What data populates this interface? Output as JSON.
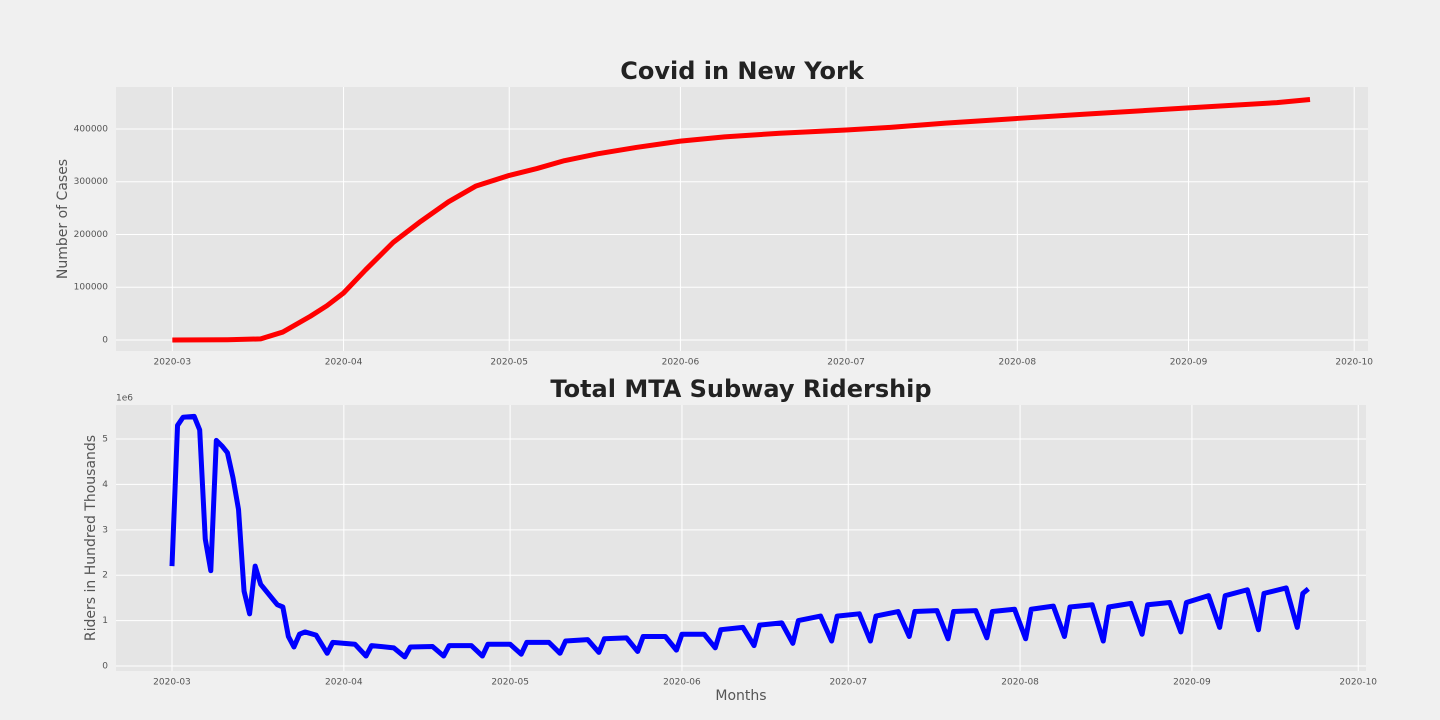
{
  "chart_data": [
    {
      "type": "line",
      "title": "Covid in New York",
      "ylabel": "Number of Cases",
      "xlim": [
        -10.2,
        216.5
      ],
      "ylim": [
        -20900,
        479600
      ],
      "xticks": [
        {
          "value": 0,
          "label": "2020-03"
        },
        {
          "value": 31,
          "label": "2020-04"
        },
        {
          "value": 61,
          "label": "2020-05"
        },
        {
          "value": 92,
          "label": "2020-06"
        },
        {
          "value": 122,
          "label": "2020-07"
        },
        {
          "value": 153,
          "label": "2020-08"
        },
        {
          "value": 184,
          "label": "2020-09"
        },
        {
          "value": 214,
          "label": "2020-10"
        }
      ],
      "yticks": [
        0,
        100000,
        200000,
        300000,
        400000
      ],
      "grid": true,
      "series": [
        {
          "color": "#ff0000",
          "x": [
            0,
            10,
            16,
            20,
            25,
            28,
            31,
            35,
            40,
            45,
            50,
            55,
            61,
            66,
            71,
            77,
            84,
            92,
            100,
            110,
            122,
            130,
            140,
            153,
            165,
            184,
            200,
            206
          ],
          "values": [
            0,
            500,
            2000,
            15000,
            45000,
            65000,
            89000,
            133000,
            185000,
            225000,
            262000,
            292000,
            312000,
            325000,
            340000,
            353000,
            365000,
            377000,
            385000,
            392000,
            398000,
            403000,
            411000,
            420000,
            428000,
            440000,
            450000,
            456000
          ]
        }
      ]
    },
    {
      "type": "line",
      "title": "Total MTA Subway Ridership",
      "ylabel": "Riders in Hundred Thousands",
      "xlabel": "Months",
      "offset_label": "1e6",
      "xlim": [
        -10.1,
        215.4
      ],
      "ylim": [
        -0.11,
        5.75
      ],
      "xticks": [
        {
          "value": 0,
          "label": "2020-03"
        },
        {
          "value": 31,
          "label": "2020-04"
        },
        {
          "value": 61,
          "label": "2020-05"
        },
        {
          "value": 92,
          "label": "2020-06"
        },
        {
          "value": 122,
          "label": "2020-07"
        },
        {
          "value": 153,
          "label": "2020-08"
        },
        {
          "value": 184,
          "label": "2020-09"
        },
        {
          "value": 214,
          "label": "2020-10"
        }
      ],
      "yticks": [
        0,
        1,
        2,
        3,
        4,
        5
      ],
      "grid": true,
      "series": [
        {
          "color": "#0000ff",
          "x": [
            0,
            1,
            2,
            4,
            5,
            6,
            7,
            8,
            9,
            10,
            11,
            12,
            13,
            14,
            15,
            16,
            18,
            19,
            20,
            21,
            22,
            23,
            24,
            26,
            28,
            29,
            33,
            35,
            36,
            40,
            42,
            43,
            47,
            49,
            50,
            54,
            56,
            57,
            61,
            63,
            64,
            68,
            70,
            71,
            75,
            77,
            78,
            82,
            84,
            85,
            89,
            91,
            92,
            96,
            98,
            99,
            103,
            105,
            106,
            110,
            112,
            113,
            117,
            119,
            120,
            124,
            126,
            127,
            131,
            133,
            134,
            138,
            140,
            141,
            145,
            147,
            148,
            152,
            154,
            155,
            159,
            161,
            162,
            166,
            168,
            169,
            173,
            175,
            176,
            180,
            182,
            183,
            187,
            189,
            190,
            194,
            196,
            197,
            201,
            203,
            204,
            205
          ],
          "values": [
            2.2,
            5.3,
            5.48,
            5.5,
            5.2,
            2.8,
            2.1,
            4.97,
            4.85,
            4.7,
            4.15,
            3.45,
            1.65,
            1.15,
            2.2,
            1.8,
            1.5,
            1.35,
            1.3,
            0.65,
            0.42,
            0.7,
            0.75,
            0.68,
            0.28,
            0.52,
            0.48,
            0.22,
            0.45,
            0.4,
            0.2,
            0.42,
            0.43,
            0.22,
            0.45,
            0.45,
            0.22,
            0.48,
            0.48,
            0.26,
            0.52,
            0.52,
            0.28,
            0.55,
            0.58,
            0.3,
            0.6,
            0.62,
            0.32,
            0.65,
            0.65,
            0.35,
            0.7,
            0.7,
            0.4,
            0.8,
            0.85,
            0.45,
            0.9,
            0.95,
            0.5,
            1.0,
            1.1,
            0.55,
            1.1,
            1.15,
            0.55,
            1.1,
            1.2,
            0.65,
            1.2,
            1.22,
            0.6,
            1.2,
            1.22,
            0.62,
            1.2,
            1.25,
            0.6,
            1.25,
            1.32,
            0.65,
            1.3,
            1.35,
            0.55,
            1.3,
            1.38,
            0.7,
            1.35,
            1.4,
            0.75,
            1.4,
            1.55,
            0.85,
            1.55,
            1.68,
            0.8,
            1.6,
            1.72,
            0.85,
            1.6,
            1.7
          ]
        }
      ]
    }
  ]
}
